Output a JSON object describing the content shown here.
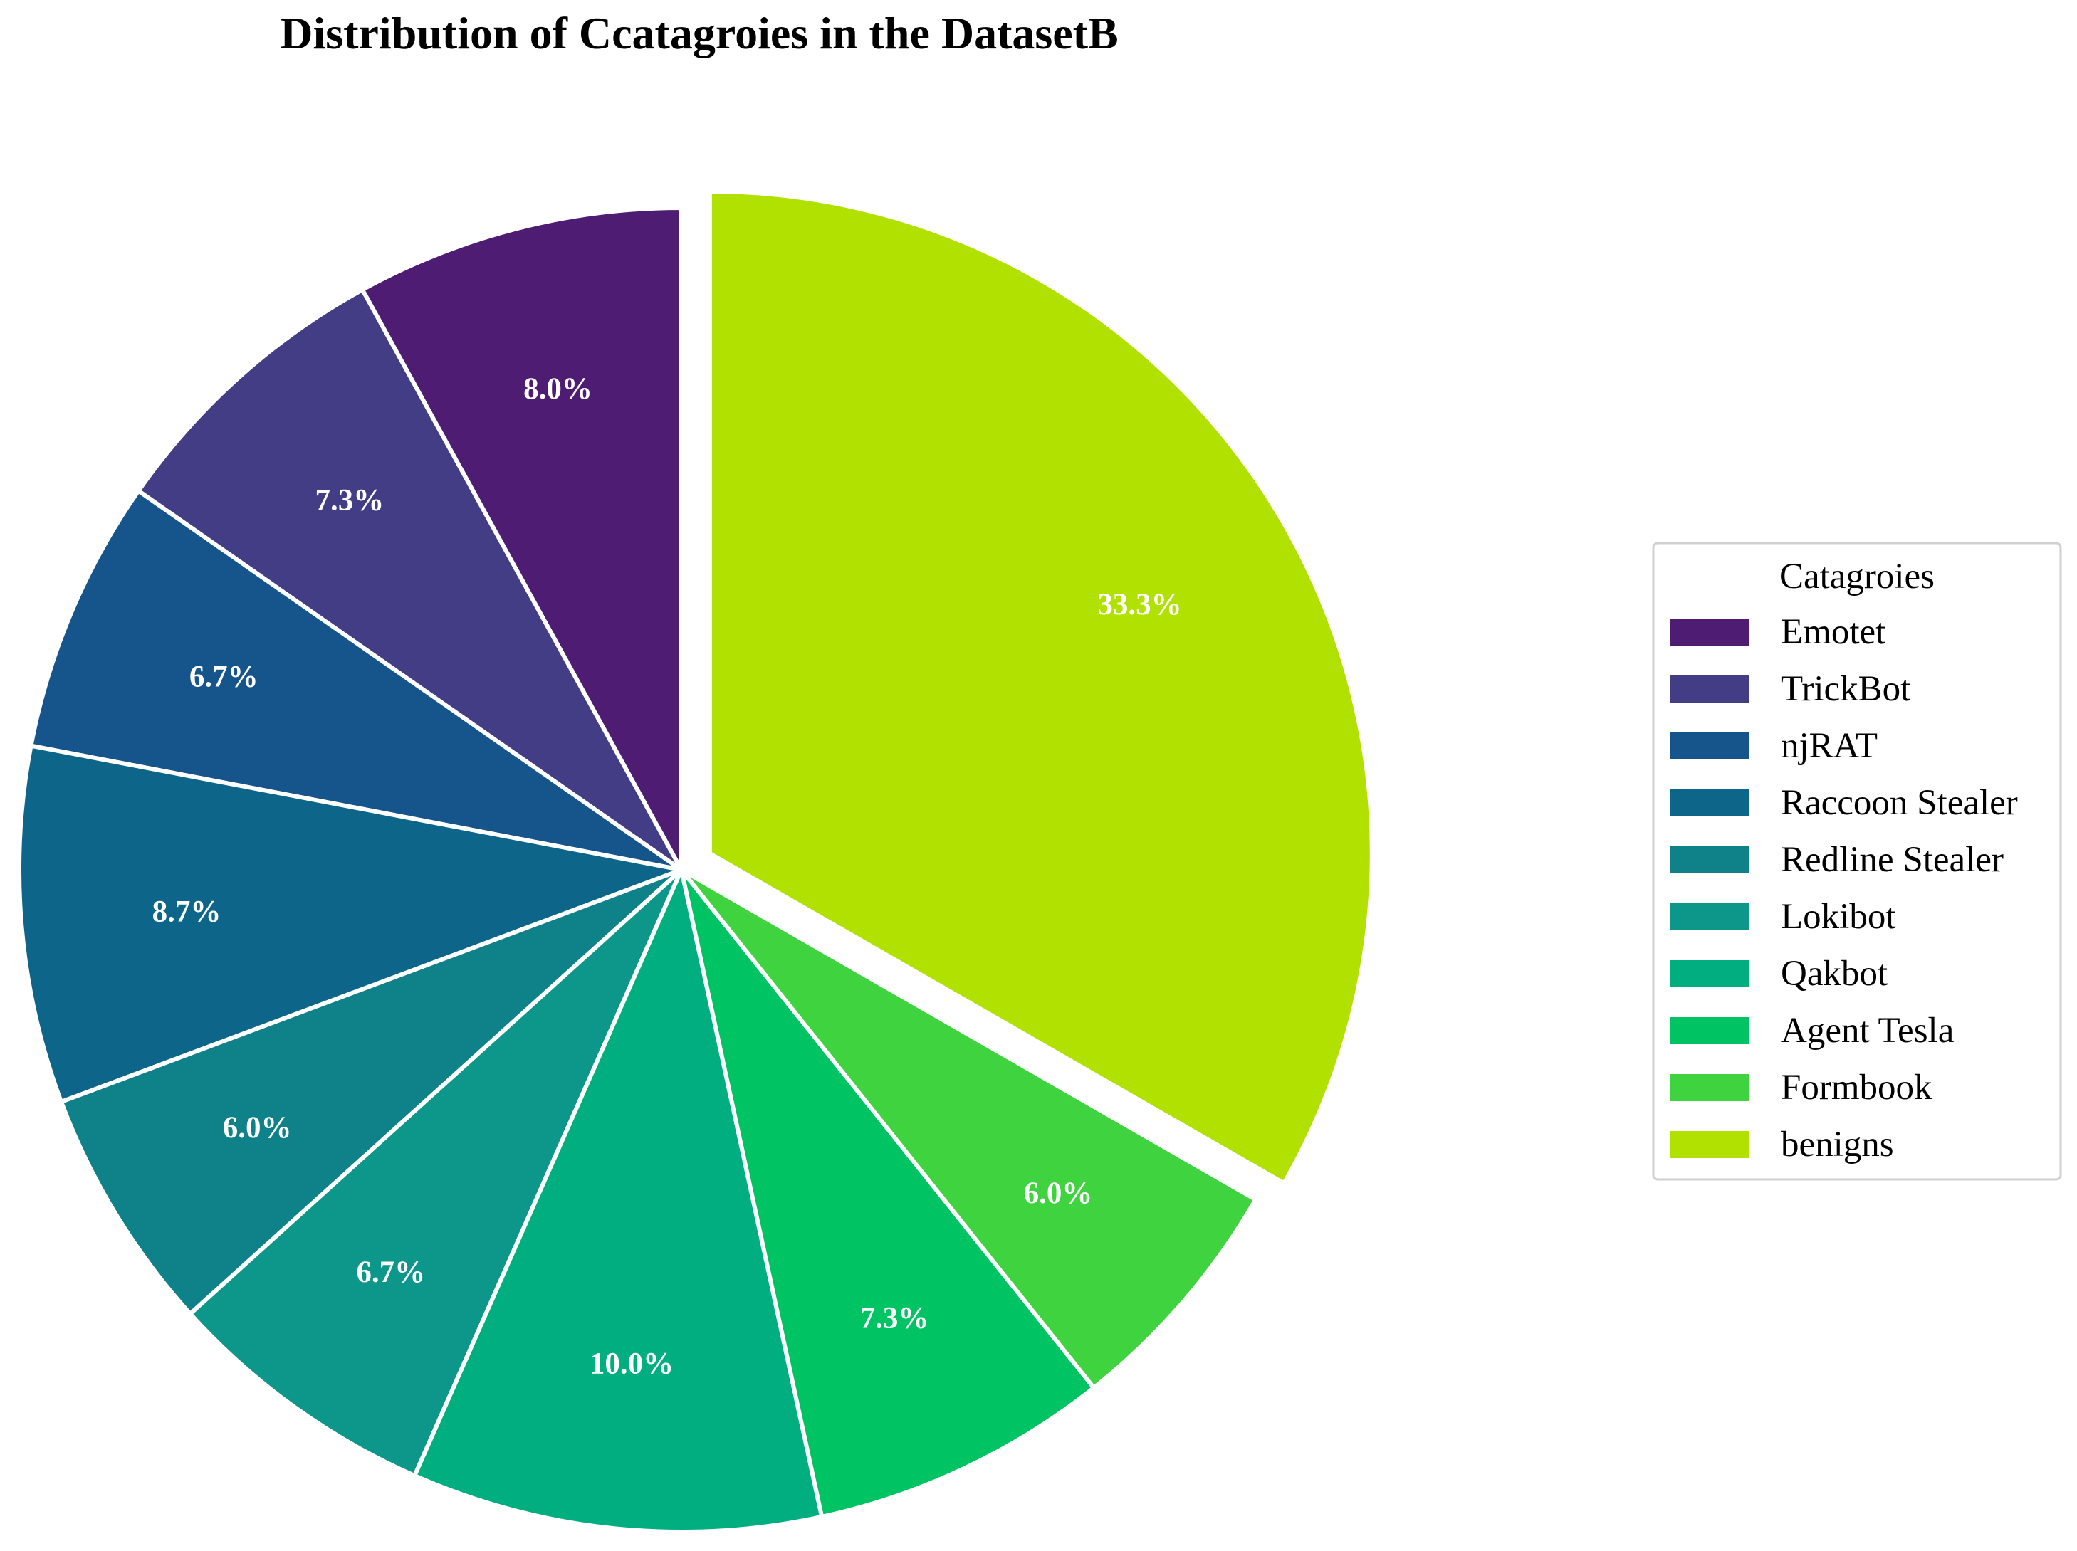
{
  "chart_data": {
    "type": "pie",
    "title": "Distribution of Ccatagroies in the DatasetB",
    "categories": [
      "Emotet",
      "TrickBot",
      "njRAT",
      "Raccoon Stealer",
      "Redline Stealer",
      "Lokibot",
      "Qakbot",
      "Agent Tesla",
      "Formbook",
      "benigns"
    ],
    "values": [
      8.0,
      7.3,
      6.7,
      8.7,
      6.0,
      6.7,
      10.0,
      7.3,
      6.0,
      33.3
    ],
    "labels": [
      "8.0%",
      "7.3%",
      "6.7%",
      "8.7%",
      "6.0%",
      "6.7%",
      "10.0%",
      "7.3%",
      "6.0%",
      "33.3%"
    ],
    "colors": [
      "#4f1c73",
      "#433d85",
      "#16558c",
      "#0d668a",
      "#0f8289",
      "#0d968a",
      "#00ae80",
      "#00c364",
      "#3fd43f",
      "#b0e100"
    ],
    "exploded": [
      "benigns"
    ],
    "start_angle_deg": 90,
    "direction": "counterclockwise",
    "legend": {
      "title": "Catagroies",
      "placement": "right"
    }
  }
}
